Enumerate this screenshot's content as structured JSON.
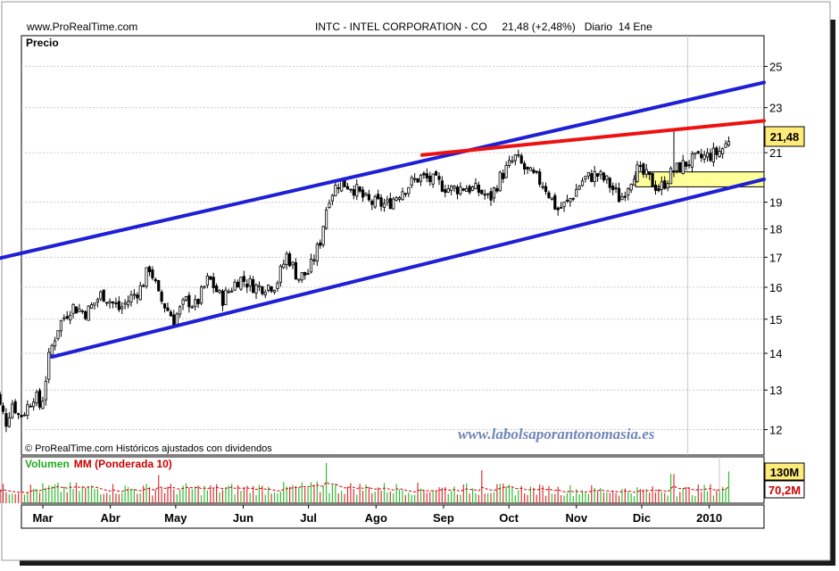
{
  "header": {
    "site": "www.ProRealTime.com",
    "title": "INTC - INTEL CORPORATION - CO     21,48 (+2,48%)   Diario  14 Ene"
  },
  "price_panel": {
    "label": "Precio",
    "footer_note": "© ProRealTime.com Históricos ajustados con dividendos",
    "watermark": "www.labolsaporantonomasia.es",
    "last_price_label": "21,48"
  },
  "volume_panel": {
    "label_volume": "Volumen",
    "label_ma": "MM (Ponderada 10)",
    "badge_volume": "130M",
    "badge_ma": "70,2M"
  },
  "colors": {
    "background": "#ffffff",
    "shadow": "#1a1a1a",
    "grid": "#c8c8c8",
    "candle": "#000000",
    "channel": "#1f1fd6",
    "resistance": "#ee1111",
    "support_zone": "#ffff99",
    "last_price_badge": "#ffeb7a",
    "volume_up": "#33bb33",
    "volume_down": "#dd3333",
    "volume_ma": "#cc0000",
    "volume_label": "#22aa22",
    "ma_label": "#cc0000",
    "watermark": "#6f86b8"
  },
  "chart_data": [
    {
      "type": "candlestick",
      "title": "INTC - INTEL CORPORATION - CO",
      "ylabel": "Precio",
      "y_scale": "log",
      "yticks": [
        12,
        13,
        14,
        15,
        16,
        17,
        18,
        19,
        21,
        23,
        25
      ],
      "ylim": [
        11.4,
        26.6
      ],
      "xticks": [
        "Mar",
        "Abr",
        "May",
        "Jun",
        "Jul",
        "Ago",
        "Sep",
        "Oct",
        "Nov",
        "Dic",
        "2010"
      ],
      "x_range_days": [
        0,
        341
      ],
      "xtick_days": [
        0,
        31,
        61,
        92,
        122,
        153,
        184,
        214,
        245,
        275,
        306
      ],
      "grid": {
        "horizontal": true,
        "vertical": false,
        "vertical_marker_day": 306
      },
      "last_price": 21.48,
      "trend_lines": [
        {
          "name": "upper-channel",
          "color": "#1f1fd6",
          "points": [
            [
              -14,
              16.9
            ],
            [
              341,
              24.2
            ]
          ]
        },
        {
          "name": "lower-channel",
          "color": "#1f1fd6",
          "points": [
            [
              14,
              13.9
            ],
            [
              341,
              19.9
            ]
          ]
        },
        {
          "name": "resistance",
          "color": "#ee1111",
          "points": [
            [
              184,
              20.9
            ],
            [
              341,
              22.4
            ]
          ]
        }
      ],
      "zones": [
        {
          "name": "support-zone",
          "x_days": [
            282,
            341
          ],
          "y": [
            19.6,
            20.2
          ],
          "color": "#ffff99"
        }
      ],
      "anchors": [
        [
          -14,
          13.6
        ],
        [
          -10,
          12.6
        ],
        [
          -7,
          12.2
        ],
        [
          -4,
          12.7
        ],
        [
          -1,
          12.3
        ],
        [
          2,
          12.5
        ],
        [
          6,
          12.9
        ],
        [
          9,
          12.5
        ],
        [
          13,
          14.0
        ],
        [
          17,
          14.8
        ],
        [
          23,
          15.4
        ],
        [
          30,
          15.2
        ],
        [
          37,
          15.8
        ],
        [
          45,
          15.3
        ],
        [
          55,
          16.0
        ],
        [
          59,
          16.7
        ],
        [
          63,
          15.7
        ],
        [
          70,
          15.0
        ],
        [
          76,
          15.6
        ],
        [
          80,
          15.4
        ],
        [
          86,
          16.3
        ],
        [
          92,
          15.6
        ],
        [
          100,
          16.3
        ],
        [
          108,
          16.0
        ],
        [
          117,
          16.1
        ],
        [
          122,
          17.1
        ],
        [
          127,
          16.3
        ],
        [
          132,
          16.5
        ],
        [
          137,
          17.5
        ],
        [
          141,
          19.2
        ],
        [
          146,
          19.8
        ],
        [
          152,
          19.6
        ],
        [
          159,
          19.0
        ],
        [
          168,
          18.9
        ],
        [
          175,
          19.5
        ],
        [
          183,
          20.0
        ],
        [
          190,
          19.8
        ],
        [
          197,
          19.5
        ],
        [
          204,
          19.6
        ],
        [
          211,
          19.4
        ],
        [
          215,
          19.1
        ],
        [
          220,
          20.0
        ],
        [
          227,
          20.8
        ],
        [
          232,
          20.2
        ],
        [
          240,
          19.7
        ],
        [
          246,
          18.7
        ],
        [
          251,
          19.0
        ],
        [
          258,
          19.9
        ],
        [
          264,
          20.1
        ],
        [
          269,
          19.8
        ],
        [
          275,
          19.1
        ],
        [
          282,
          20.3
        ],
        [
          287,
          20.0
        ],
        [
          293,
          19.5
        ],
        [
          299,
          20.2
        ],
        [
          306,
          20.6
        ],
        [
          313,
          20.8
        ],
        [
          320,
          21.0
        ],
        [
          325,
          21.48
        ]
      ]
    },
    {
      "type": "bar",
      "title": "Volumen",
      "series": [
        {
          "name": "Volumen",
          "type": "bar"
        },
        {
          "name": "MM (Ponderada 10)",
          "type": "line"
        }
      ],
      "last_volume": "130M",
      "last_ma": "70,2M",
      "ylim": [
        0,
        190
      ],
      "volume_anchors": [
        [
          -14,
          55
        ],
        [
          20,
          60
        ],
        [
          60,
          57
        ],
        [
          100,
          58
        ],
        [
          140,
          63
        ],
        [
          180,
          59
        ],
        [
          220,
          56
        ],
        [
          260,
          53
        ],
        [
          300,
          48
        ],
        [
          325,
          60
        ]
      ],
      "spikes": [
        [
          63,
          115
        ],
        [
          140,
          165
        ],
        [
          212,
          135
        ],
        [
          299,
          120
        ],
        [
          325,
          130
        ]
      ]
    }
  ]
}
